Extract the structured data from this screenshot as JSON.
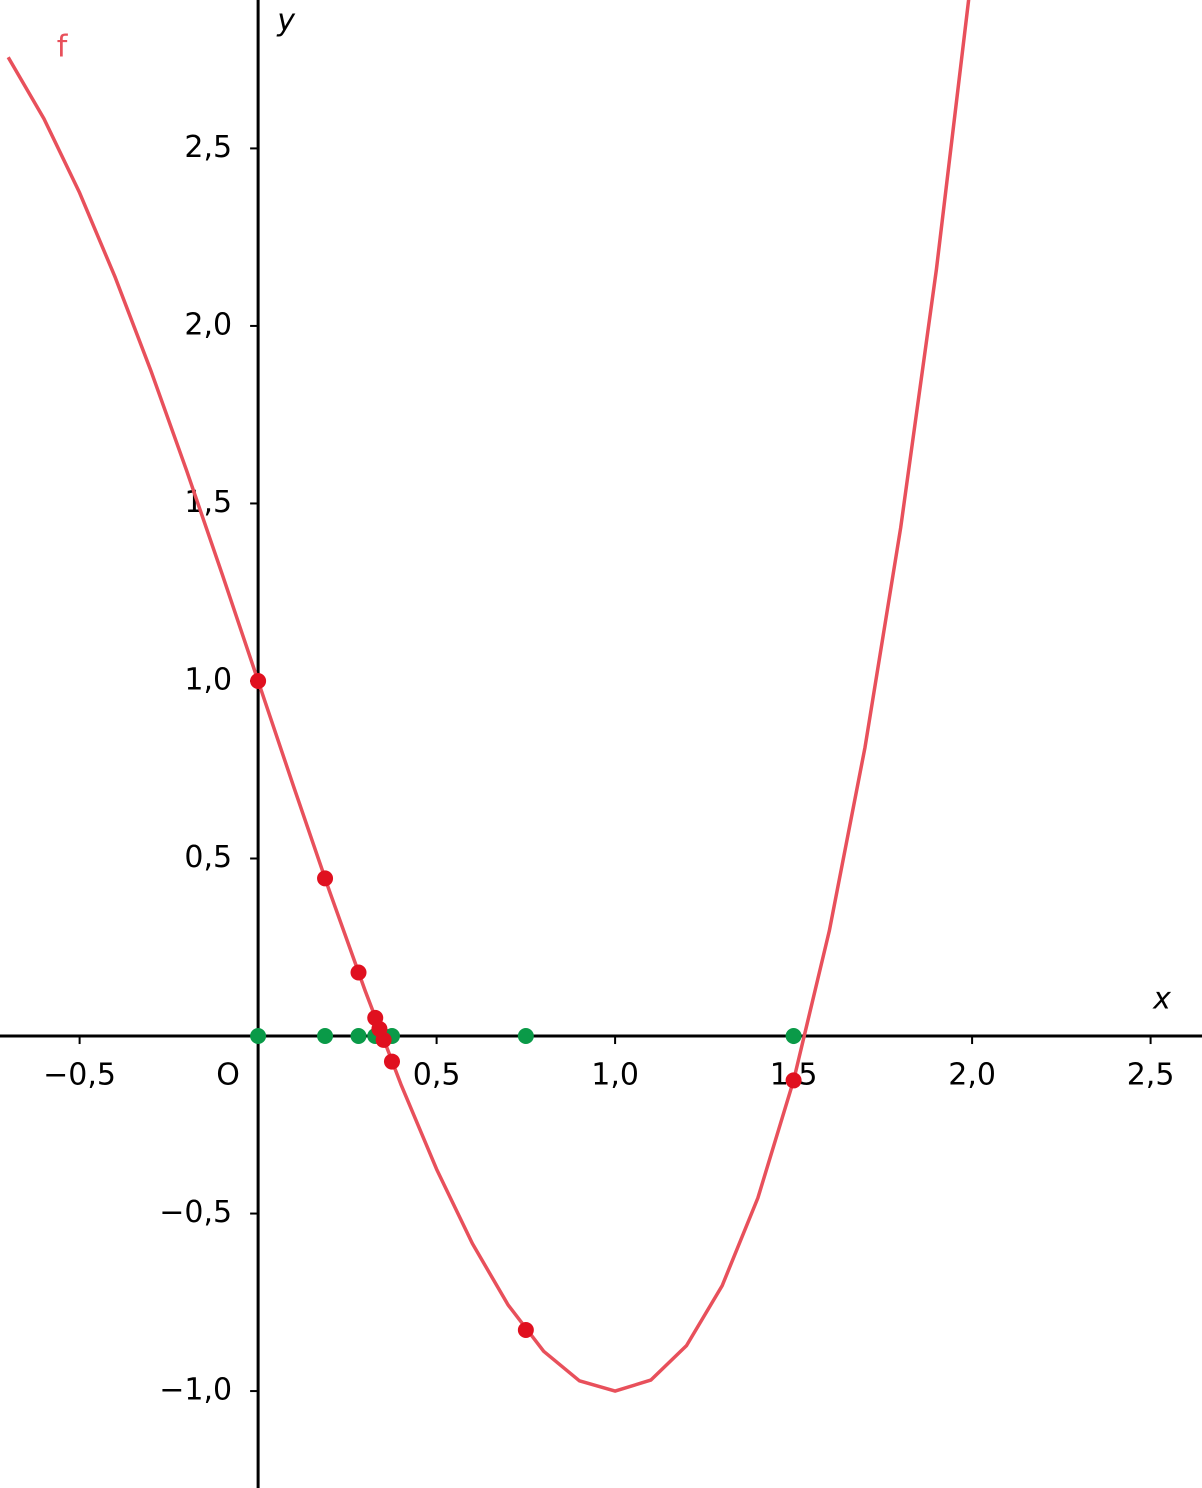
{
  "chart_data": {
    "type": "line",
    "function_label": "f",
    "xlabel": "x",
    "ylabel": "y",
    "origin_label": "O",
    "xlim": [
      -0.723,
      2.644
    ],
    "ylim": [
      -1.273,
      2.918
    ],
    "xticks": [
      {
        "value": -0.5,
        "label": "−0,5"
      },
      {
        "value": 0.5,
        "label": "0,5"
      },
      {
        "value": 1,
        "label": "1,0"
      },
      {
        "value": 1.5,
        "label": "1,5"
      },
      {
        "value": 2,
        "label": "2,0"
      },
      {
        "value": 2.5,
        "label": "2,5"
      }
    ],
    "yticks": [
      {
        "value": 2.5,
        "label": "2,5"
      },
      {
        "value": 2,
        "label": "2,0"
      },
      {
        "value": 1.5,
        "label": "1,5"
      },
      {
        "value": 1,
        "label": "1,0"
      },
      {
        "value": 0.5,
        "label": "0,5"
      },
      {
        "value": -0.5,
        "label": "−0,5"
      },
      {
        "value": -1,
        "label": "−1,0"
      }
    ],
    "curve": {
      "color": "#e8505b",
      "x": [
        -0.7,
        -0.6,
        -0.5,
        -0.4,
        -0.3,
        -0.2,
        -0.1,
        0,
        0.1,
        0.2,
        0.3,
        0.4,
        0.5,
        0.6,
        0.7,
        0.8,
        0.9,
        1.0,
        1.1,
        1.2,
        1.3,
        1.4,
        1.5,
        1.6,
        1.7,
        1.8,
        1.9,
        2.0
      ],
      "values": [
        2.757,
        2.584,
        2.375,
        2.136,
        1.873,
        1.592,
        1.299,
        1,
        0.701,
        0.408,
        0.127,
        -0.136,
        -0.375,
        -0.584,
        -0.757,
        -0.888,
        -0.971,
        -1,
        -0.969,
        -0.872,
        -0.703,
        -0.456,
        -0.125,
        0.296,
        0.813,
        1.432,
        2.159,
        3
      ]
    },
    "points": {
      "color": "#e0101f",
      "axis_color": "#0a9a48",
      "x": [
        0,
        1.5,
        0.75,
        0.375,
        0.1875,
        0.28125,
        0.328125,
        0.3515625,
        0.33984375
      ],
      "values": [
        1,
        -0.125,
        -0.828,
        -0.072,
        0.444,
        0.179,
        0.051,
        -0.011,
        0.02
      ]
    }
  }
}
